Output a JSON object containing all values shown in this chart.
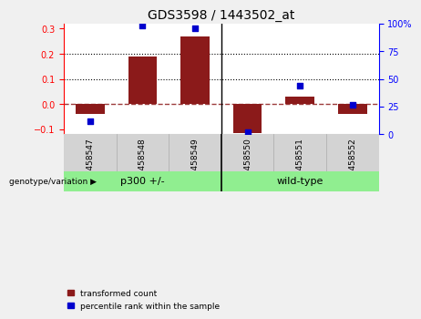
{
  "title": "GDS3598 / 1443502_at",
  "samples": [
    "GSM458547",
    "GSM458548",
    "GSM458549",
    "GSM458550",
    "GSM458551",
    "GSM458552"
  ],
  "bar_values": [
    -0.04,
    0.19,
    0.27,
    -0.115,
    0.03,
    -0.04
  ],
  "scatter_percentile": [
    12,
    98,
    96,
    2,
    44,
    27
  ],
  "bar_color": "#8b1a1a",
  "scatter_color": "#0000cd",
  "ylim_left": [
    -0.12,
    0.32
  ],
  "ylim_right": [
    0,
    100
  ],
  "yticks_left": [
    -0.1,
    0.0,
    0.1,
    0.2,
    0.3
  ],
  "yticks_right": [
    0,
    25,
    50,
    75,
    100
  ],
  "hline_y": 0.0,
  "dotted_lines": [
    0.1,
    0.2
  ],
  "bar_width": 0.55,
  "background_color": "#f0f0f0",
  "plot_bg": "#ffffff",
  "xlabels_bg": "#d3d3d3",
  "group_bg": "#90ee90",
  "label_fontsize": 8,
  "title_fontsize": 10,
  "tick_fontsize": 7,
  "sample_fontsize": 6.5,
  "genotype_label": "genotype/variation",
  "group_labels": [
    "p300 +/-",
    "wild-type"
  ],
  "legend_items": [
    {
      "label": "transformed count",
      "color": "#8b1a1a"
    },
    {
      "label": "percentile rank within the sample",
      "color": "#0000cd"
    }
  ]
}
